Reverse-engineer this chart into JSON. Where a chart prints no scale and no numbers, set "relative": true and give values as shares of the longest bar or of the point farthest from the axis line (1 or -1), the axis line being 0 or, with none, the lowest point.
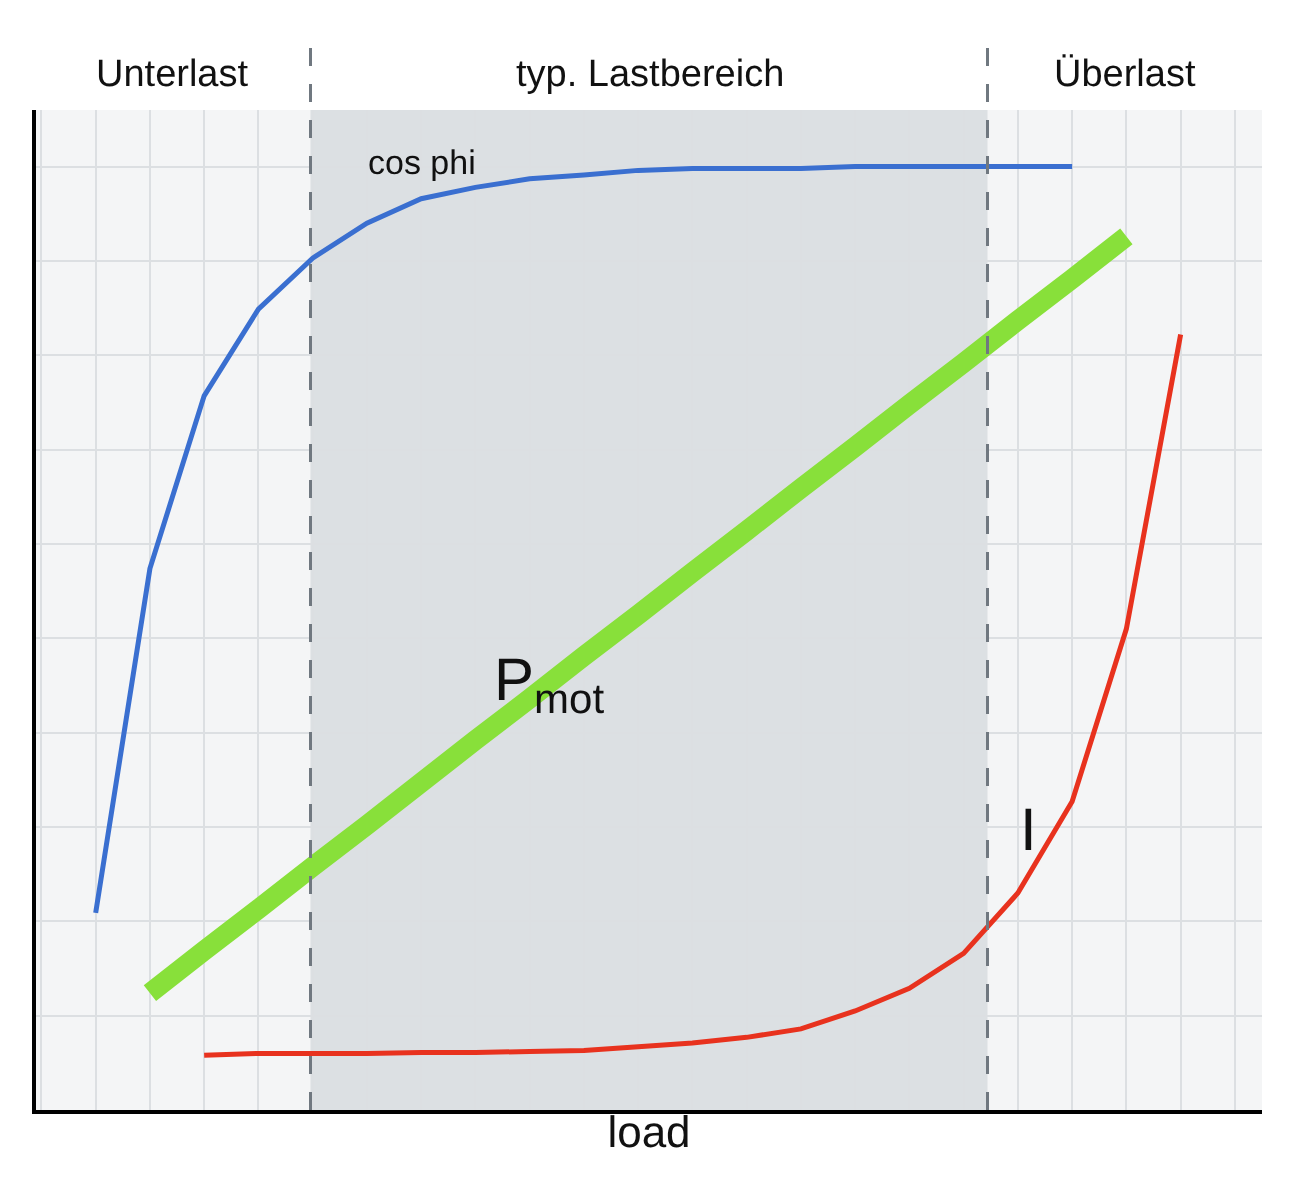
{
  "chart_data": {
    "type": "line",
    "relative": true,
    "xlabel": "load",
    "tick_labels": false,
    "grid": true,
    "legend": false,
    "marker": "none",
    "line_style": "solid",
    "categories": [
      null,
      null,
      null,
      null,
      null,
      null,
      null,
      null,
      null,
      null,
      null,
      null,
      null,
      null,
      null,
      null,
      null,
      null,
      null,
      null,
      null
    ],
    "series": [
      {
        "name": "cos phi",
        "color": "#3a6fd0",
        "values": [
          0.209,
          0.574,
          0.757,
          0.849,
          0.903,
          0.94,
          0.966,
          0.978,
          0.987,
          0.991,
          0.996,
          0.998,
          0.998,
          0.998,
          1,
          1,
          1,
          1,
          1,
          null,
          null
        ]
      },
      {
        "name": "P$_{mot}$",
        "color": "#88e03a",
        "values": [
          null,
          0.124,
          0.169,
          0.213,
          0.258,
          0.302,
          0.347,
          0.392,
          0.436,
          0.481,
          0.525,
          0.57,
          0.614,
          0.659,
          0.703,
          0.748,
          0.792,
          0.837,
          0.881,
          0.926,
          null
        ]
      },
      {
        "name": "I",
        "color": "#e8321e",
        "values": [
          null,
          null,
          0.058,
          0.06,
          0.06,
          0.06,
          0.061,
          0.061,
          0.062,
          0.063,
          0.067,
          0.071,
          0.077,
          0.086,
          0.105,
          0.129,
          0.166,
          0.23,
          0.327,
          0.51,
          0.822
        ]
      }
    ],
    "annotations": [
      "Unterlast",
      "typ. Lastbereich",
      "Überlast"
    ]
  }
}
